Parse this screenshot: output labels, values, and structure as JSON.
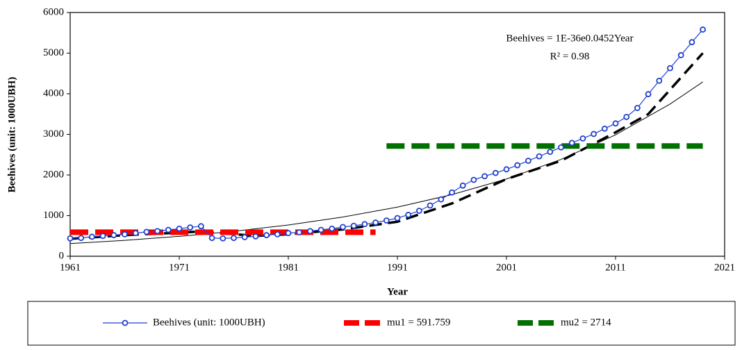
{
  "chart_data": {
    "type": "line",
    "x_label": "Year",
    "y_label": "Beehives (unit: 1000UBH)",
    "annotations": [
      "Beehives = 1E-36e0.0452Year",
      "R² = 0.98"
    ],
    "xlim": [
      1961,
      2021
    ],
    "xticks": [
      1961,
      1971,
      1981,
      1991,
      2001,
      2011,
      2021
    ],
    "ylim": [
      0,
      6000
    ],
    "yticks": [
      0,
      1000,
      2000,
      3000,
      4000,
      5000,
      6000
    ],
    "series": [
      {
        "name": "Beehives (unit: 1000UBH)",
        "color": "#1f3fd0",
        "style": "marker",
        "x": [
          1961,
          1962,
          1963,
          1964,
          1965,
          1966,
          1967,
          1968,
          1969,
          1970,
          1971,
          1972,
          1973,
          1974,
          1975,
          1976,
          1977,
          1978,
          1979,
          1980,
          1981,
          1982,
          1983,
          1984,
          1985,
          1986,
          1987,
          1988,
          1989,
          1990,
          1991,
          1992,
          1993,
          1994,
          1995,
          1996,
          1997,
          1998,
          1999,
          2000,
          2001,
          2002,
          2003,
          2004,
          2005,
          2006,
          2007,
          2008,
          2009,
          2010,
          2011,
          2012,
          2013,
          2014,
          2015,
          2016,
          2017,
          2018,
          2019
        ],
        "values": [
          440,
          450,
          480,
          500,
          520,
          540,
          570,
          600,
          620,
          650,
          680,
          710,
          740,
          450,
          440,
          450,
          470,
          490,
          520,
          540,
          570,
          590,
          620,
          650,
          680,
          720,
          750,
          790,
          830,
          880,
          940,
          1020,
          1120,
          1250,
          1400,
          1570,
          1740,
          1880,
          1970,
          2050,
          2140,
          2240,
          2350,
          2460,
          2570,
          2680,
          2790,
          2900,
          3010,
          3140,
          3270,
          3430,
          3650,
          3990,
          4320,
          4630,
          4950,
          5270,
          5580
        ]
      },
      {
        "name": "mu1 = 591.759",
        "color": "#ff0000",
        "style": "dash",
        "x": [
          1961,
          1989
        ],
        "values": [
          591.759,
          591.759
        ]
      },
      {
        "name": "mu2 = 2714",
        "color": "#007000",
        "style": "dash",
        "x": [
          1990,
          2019
        ],
        "values": [
          2714,
          2714
        ]
      }
    ],
    "trend": {
      "color": "#000000",
      "x": [
        1961,
        1966,
        1971,
        1976,
        1981,
        1986,
        1991,
        1996,
        2001,
        2006,
        2011,
        2016,
        2019
      ],
      "values": [
        312,
        391,
        490,
        614,
        770,
        965,
        1210,
        1517,
        1902,
        2384,
        2989,
        3747,
        4291
      ]
    },
    "fit": {
      "color": "#000000",
      "x": [
        1961,
        1966,
        1971,
        1973,
        1978,
        1981,
        1986,
        1991,
        1996,
        2001,
        2006,
        2011,
        2014,
        2019
      ],
      "values": [
        430,
        520,
        580,
        610,
        500,
        540,
        660,
        850,
        1300,
        1900,
        2350,
        3050,
        3500,
        5000
      ]
    }
  }
}
